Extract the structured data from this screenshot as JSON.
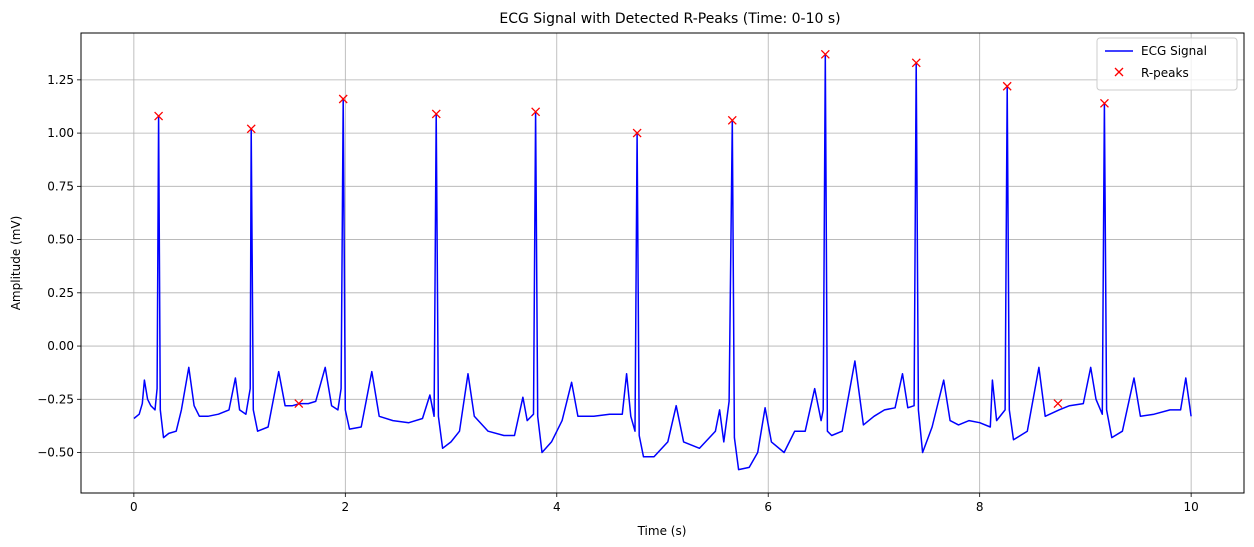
{
  "chart_data": {
    "type": "line",
    "title": "ECG Signal with Detected R-Peaks (Time: 0-10 s)",
    "xlabel": "Time (s)",
    "ylabel": "Amplitude (mV)",
    "xlim": [
      -0.5,
      10.5
    ],
    "ylim": [
      -0.69,
      1.47
    ],
    "xticks": [
      0,
      2,
      4,
      6,
      8,
      10
    ],
    "xtick_labels": [
      "0",
      "2",
      "4",
      "6",
      "8",
      "10"
    ],
    "yticks": [
      -0.5,
      -0.25,
      0.0,
      0.25,
      0.5,
      0.75,
      1.0,
      1.25
    ],
    "ytick_labels": [
      "−0.50",
      "−0.25",
      "0.00",
      "0.25",
      "0.50",
      "0.75",
      "1.00",
      "1.25"
    ],
    "grid": true,
    "legend_position": "top-right",
    "series": [
      {
        "name": "ECG Signal",
        "color": "#0000ff",
        "style": "line",
        "sampled_points": [
          [
            0.0,
            -0.34
          ],
          [
            0.05,
            -0.32
          ],
          [
            0.08,
            -0.27
          ],
          [
            0.1,
            -0.16
          ],
          [
            0.13,
            -0.25
          ],
          [
            0.16,
            -0.28
          ],
          [
            0.2,
            -0.3
          ],
          [
            0.22,
            -0.2
          ],
          [
            0.234,
            1.08
          ],
          [
            0.25,
            -0.3
          ],
          [
            0.28,
            -0.43
          ],
          [
            0.33,
            -0.41
          ],
          [
            0.4,
            -0.4
          ],
          [
            0.45,
            -0.3
          ],
          [
            0.52,
            -0.1
          ],
          [
            0.57,
            -0.28
          ],
          [
            0.62,
            -0.33
          ],
          [
            0.7,
            -0.33
          ],
          [
            0.8,
            -0.32
          ],
          [
            0.9,
            -0.3
          ],
          [
            0.96,
            -0.15
          ],
          [
            1.0,
            -0.3
          ],
          [
            1.06,
            -0.32
          ],
          [
            1.1,
            -0.2
          ],
          [
            1.11,
            1.02
          ],
          [
            1.13,
            -0.3
          ],
          [
            1.17,
            -0.4
          ],
          [
            1.27,
            -0.38
          ],
          [
            1.37,
            -0.12
          ],
          [
            1.43,
            -0.28
          ],
          [
            1.5,
            -0.28
          ],
          [
            1.57,
            -0.27
          ],
          [
            1.65,
            -0.27
          ],
          [
            1.72,
            -0.26
          ],
          [
            1.81,
            -0.1
          ],
          [
            1.87,
            -0.28
          ],
          [
            1.93,
            -0.3
          ],
          [
            1.96,
            -0.2
          ],
          [
            1.98,
            1.16
          ],
          [
            2.0,
            -0.3
          ],
          [
            2.04,
            -0.39
          ],
          [
            2.15,
            -0.38
          ],
          [
            2.25,
            -0.12
          ],
          [
            2.32,
            -0.33
          ],
          [
            2.45,
            -0.35
          ],
          [
            2.6,
            -0.36
          ],
          [
            2.73,
            -0.34
          ],
          [
            2.8,
            -0.23
          ],
          [
            2.84,
            -0.33
          ],
          [
            2.86,
            1.09
          ],
          [
            2.88,
            -0.33
          ],
          [
            2.92,
            -0.48
          ],
          [
            3.0,
            -0.45
          ],
          [
            3.08,
            -0.4
          ],
          [
            3.16,
            -0.13
          ],
          [
            3.22,
            -0.33
          ],
          [
            3.35,
            -0.4
          ],
          [
            3.5,
            -0.42
          ],
          [
            3.6,
            -0.42
          ],
          [
            3.68,
            -0.24
          ],
          [
            3.72,
            -0.35
          ],
          [
            3.78,
            -0.32
          ],
          [
            3.8,
            1.1
          ],
          [
            3.82,
            -0.33
          ],
          [
            3.86,
            -0.5
          ],
          [
            3.95,
            -0.45
          ],
          [
            4.05,
            -0.35
          ],
          [
            4.14,
            -0.17
          ],
          [
            4.2,
            -0.33
          ],
          [
            4.35,
            -0.33
          ],
          [
            4.5,
            -0.32
          ],
          [
            4.62,
            -0.32
          ],
          [
            4.66,
            -0.13
          ],
          [
            4.7,
            -0.33
          ],
          [
            4.74,
            -0.4
          ],
          [
            4.76,
            1.0
          ],
          [
            4.78,
            -0.42
          ],
          [
            4.82,
            -0.52
          ],
          [
            4.92,
            -0.52
          ],
          [
            5.05,
            -0.45
          ],
          [
            5.13,
            -0.28
          ],
          [
            5.2,
            -0.45
          ],
          [
            5.35,
            -0.48
          ],
          [
            5.5,
            -0.4
          ],
          [
            5.54,
            -0.3
          ],
          [
            5.58,
            -0.45
          ],
          [
            5.63,
            -0.26
          ],
          [
            5.66,
            1.06
          ],
          [
            5.68,
            -0.43
          ],
          [
            5.72,
            -0.58
          ],
          [
            5.82,
            -0.57
          ],
          [
            5.9,
            -0.5
          ],
          [
            5.97,
            -0.29
          ],
          [
            6.03,
            -0.45
          ],
          [
            6.15,
            -0.5
          ],
          [
            6.25,
            -0.4
          ],
          [
            6.35,
            -0.4
          ],
          [
            6.44,
            -0.2
          ],
          [
            6.5,
            -0.35
          ],
          [
            6.52,
            -0.3
          ],
          [
            6.54,
            1.37
          ],
          [
            6.56,
            -0.4
          ],
          [
            6.6,
            -0.42
          ],
          [
            6.7,
            -0.4
          ],
          [
            6.82,
            -0.07
          ],
          [
            6.9,
            -0.37
          ],
          [
            7.0,
            -0.33
          ],
          [
            7.1,
            -0.3
          ],
          [
            7.2,
            -0.29
          ],
          [
            7.27,
            -0.13
          ],
          [
            7.32,
            -0.29
          ],
          [
            7.38,
            -0.28
          ],
          [
            7.4,
            1.33
          ],
          [
            7.42,
            -0.3
          ],
          [
            7.46,
            -0.5
          ],
          [
            7.55,
            -0.38
          ],
          [
            7.66,
            -0.16
          ],
          [
            7.72,
            -0.35
          ],
          [
            7.8,
            -0.37
          ],
          [
            7.9,
            -0.35
          ],
          [
            8.0,
            -0.36
          ],
          [
            8.1,
            -0.38
          ],
          [
            8.12,
            -0.16
          ],
          [
            8.16,
            -0.35
          ],
          [
            8.24,
            -0.3
          ],
          [
            8.26,
            1.22
          ],
          [
            8.28,
            -0.3
          ],
          [
            8.32,
            -0.44
          ],
          [
            8.45,
            -0.4
          ],
          [
            8.56,
            -0.1
          ],
          [
            8.62,
            -0.33
          ],
          [
            8.75,
            -0.3
          ],
          [
            8.85,
            -0.28
          ],
          [
            8.98,
            -0.27
          ],
          [
            9.05,
            -0.1
          ],
          [
            9.1,
            -0.25
          ],
          [
            9.16,
            -0.32
          ],
          [
            9.18,
            1.14
          ],
          [
            9.2,
            -0.3
          ],
          [
            9.25,
            -0.43
          ],
          [
            9.35,
            -0.4
          ],
          [
            9.46,
            -0.15
          ],
          [
            9.52,
            -0.33
          ],
          [
            9.65,
            -0.32
          ],
          [
            9.8,
            -0.3
          ],
          [
            9.9,
            -0.3
          ],
          [
            9.95,
            -0.15
          ],
          [
            10.0,
            -0.33
          ]
        ]
      },
      {
        "name": "R-peaks",
        "color": "#ff0000",
        "style": "marker-x",
        "x": [
          0.234,
          1.11,
          1.56,
          1.98,
          2.86,
          3.8,
          4.76,
          5.66,
          6.54,
          7.4,
          8.26,
          8.74,
          9.18
        ],
        "y": [
          1.08,
          1.02,
          -0.27,
          1.16,
          1.09,
          1.1,
          1.0,
          1.06,
          1.37,
          1.33,
          1.22,
          -0.27,
          1.14
        ]
      }
    ]
  }
}
